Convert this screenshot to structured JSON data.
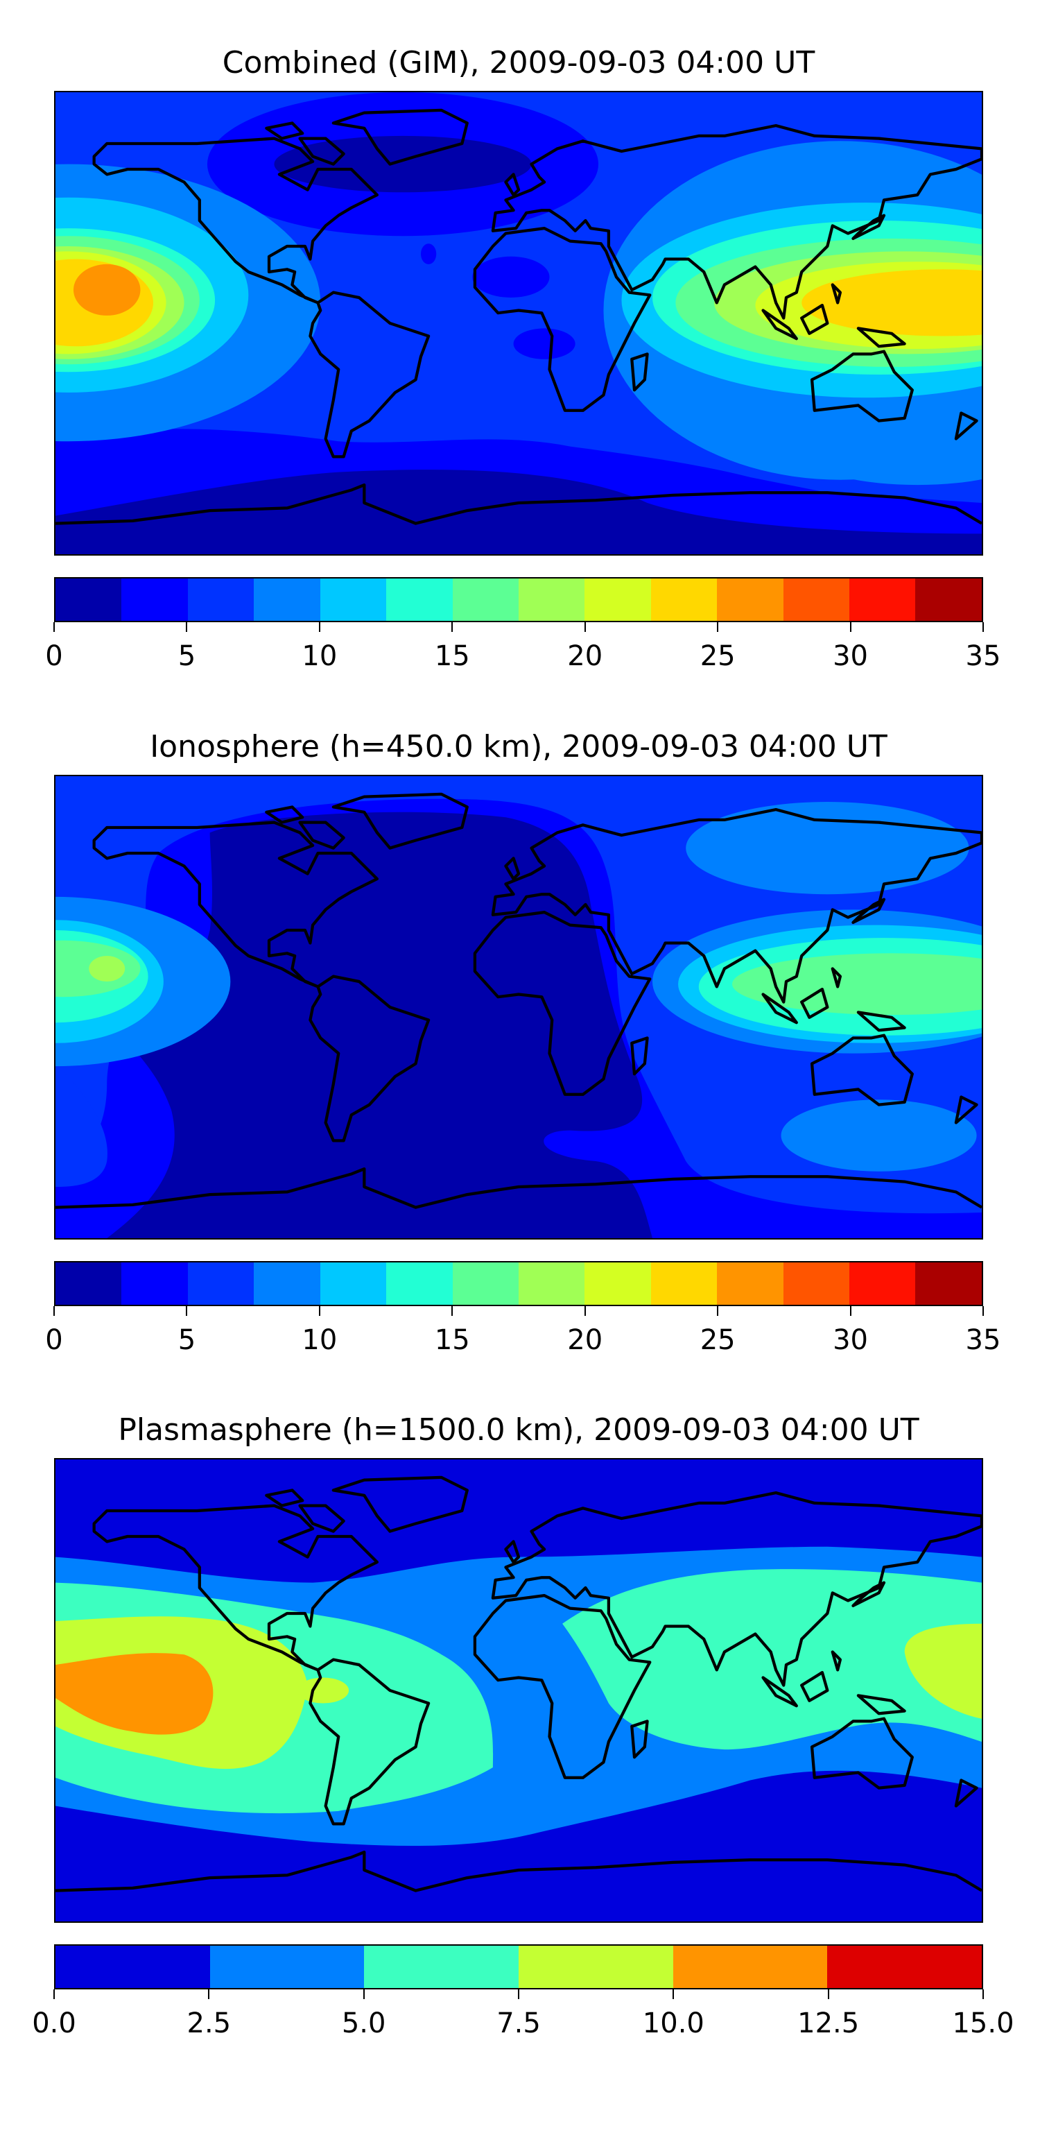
{
  "chart_data": [
    {
      "type": "heatmap",
      "subtype": "filled-contour-map",
      "title": "Combined (GIM), 2009-09-03 04:00 UT",
      "projection": "plate-carree",
      "lon_range": [
        -180,
        180
      ],
      "lat_range": [
        -90,
        90
      ],
      "levels": [
        0,
        2.5,
        5,
        7.5,
        10,
        12.5,
        15,
        17.5,
        20,
        22.5,
        25,
        27.5,
        30,
        32.5,
        35
      ],
      "colors": [
        "#0000aa",
        "#0000ff",
        "#0033ff",
        "#0080ff",
        "#00c8ff",
        "#22ffd4",
        "#5cff94",
        "#a0ff55",
        "#d4ff22",
        "#ffd800",
        "#ff9400",
        "#ff5500",
        "#ff1100",
        "#aa0000"
      ],
      "colorbar_ticks": [
        "0",
        "5",
        "10",
        "15",
        "20",
        "25",
        "30",
        "35"
      ],
      "colorbar_range": [
        0,
        35
      ],
      "peaks": [
        {
          "region": "Central Pacific",
          "lon": -160,
          "lat": 3,
          "level_range": [
            25,
            27.5
          ]
        },
        {
          "region": "Western Pacific / SE Asia",
          "lon": 165,
          "lat": 8,
          "level_range": [
            22.5,
            25
          ]
        }
      ],
      "minimum_level_range": [
        0,
        2.5
      ]
    },
    {
      "type": "heatmap",
      "subtype": "filled-contour-map",
      "title": "Ionosphere  (h=450.0 km), 2009-09-03 04:00 UT",
      "projection": "plate-carree",
      "lon_range": [
        -180,
        180
      ],
      "lat_range": [
        -90,
        90
      ],
      "levels": [
        0,
        2.5,
        5,
        7.5,
        10,
        12.5,
        15,
        17.5,
        20,
        22.5,
        25,
        27.5,
        30,
        32.5,
        35
      ],
      "colors": [
        "#0000aa",
        "#0000ff",
        "#0033ff",
        "#0080ff",
        "#00c8ff",
        "#22ffd4",
        "#5cff94",
        "#a0ff55",
        "#d4ff22",
        "#ffd800",
        "#ff9400",
        "#ff5500",
        "#ff1100",
        "#aa0000"
      ],
      "colorbar_ticks": [
        "0",
        "5",
        "10",
        "15",
        "20",
        "25",
        "30",
        "35"
      ],
      "colorbar_range": [
        0,
        35
      ],
      "peaks": [
        {
          "region": "Central Pacific",
          "lon": -165,
          "lat": 12,
          "level_range": [
            17.5,
            20
          ]
        },
        {
          "region": "Western Pacific / SE Asia",
          "lon": 150,
          "lat": 5,
          "level_range": [
            15,
            17.5
          ]
        }
      ],
      "minimum_level_range": [
        0,
        2.5
      ]
    },
    {
      "type": "heatmap",
      "subtype": "filled-contour-map",
      "title": "Plasmasphere (h=1500.0 km), 2009-09-03 04:00 UT",
      "projection": "plate-carree",
      "lon_range": [
        -180,
        180
      ],
      "lat_range": [
        -90,
        90
      ],
      "levels": [
        0,
        2.5,
        5,
        7.5,
        10,
        12.5,
        15
      ],
      "colors": [
        "#0000dd",
        "#0080ff",
        "#3cffc0",
        "#c4ff33",
        "#ff9400",
        "#dd0000"
      ],
      "colorbar_ticks": [
        "0.0",
        "2.5",
        "5.0",
        "7.5",
        "10.0",
        "12.5",
        "15.0"
      ],
      "colorbar_range": [
        0,
        15
      ],
      "peaks": [
        {
          "region": "Eastern Pacific",
          "lon": -150,
          "lat": -5,
          "level_range": [
            10,
            12.5
          ]
        }
      ],
      "minimum_level_range": [
        0,
        2.5
      ]
    }
  ]
}
